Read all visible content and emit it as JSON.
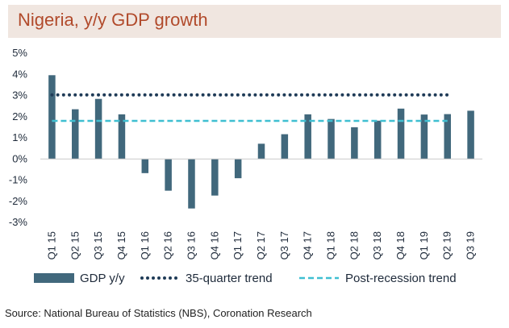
{
  "title": "Nigeria, y/y GDP growth",
  "source": "Source: National Bureau of Statistics (NBS), Coronation Research",
  "colors": {
    "bar": "#41687c",
    "trend35": "#1f3b57",
    "post_recession": "#3fbfd1",
    "title_band": "#f0e6e0",
    "title_text": "#b14a2b"
  },
  "chart_data": {
    "type": "bar",
    "title": "Nigeria, y/y GDP growth",
    "categories": [
      "Q1 15",
      "Q2 15",
      "Q3 15",
      "Q4 15",
      "Q1 16",
      "Q2 16",
      "Q3 16",
      "Q4 16",
      "Q1 17",
      "Q2 17",
      "Q3 17",
      "Q4 17",
      "Q1 18",
      "Q2 18",
      "Q3 18",
      "Q4 18",
      "Q1 19",
      "Q2 19",
      "Q3 19"
    ],
    "series": [
      {
        "name": "GDP y/y",
        "type": "bar",
        "values": [
          3.96,
          2.35,
          2.84,
          2.11,
          -0.67,
          -1.5,
          -2.34,
          -1.73,
          -0.91,
          0.72,
          1.17,
          2.11,
          1.89,
          1.5,
          1.81,
          2.38,
          2.1,
          2.12,
          2.28
        ]
      },
      {
        "name": "35-quarter trend",
        "type": "line",
        "style": "dotted",
        "from": "Q1 15",
        "to": "Q2 19",
        "value": 3.03
      },
      {
        "name": "Post-recession trend",
        "type": "line",
        "style": "dashed",
        "from": "Q1 15",
        "to": "Q2 19",
        "value": 1.8
      }
    ],
    "yticks": [
      "5%",
      "4%",
      "3%",
      "2%",
      "1%",
      "0%",
      "-1%",
      "-2%",
      "-3%"
    ],
    "ylim": [
      -3,
      5
    ],
    "grid": false,
    "legend_position": "bottom"
  }
}
